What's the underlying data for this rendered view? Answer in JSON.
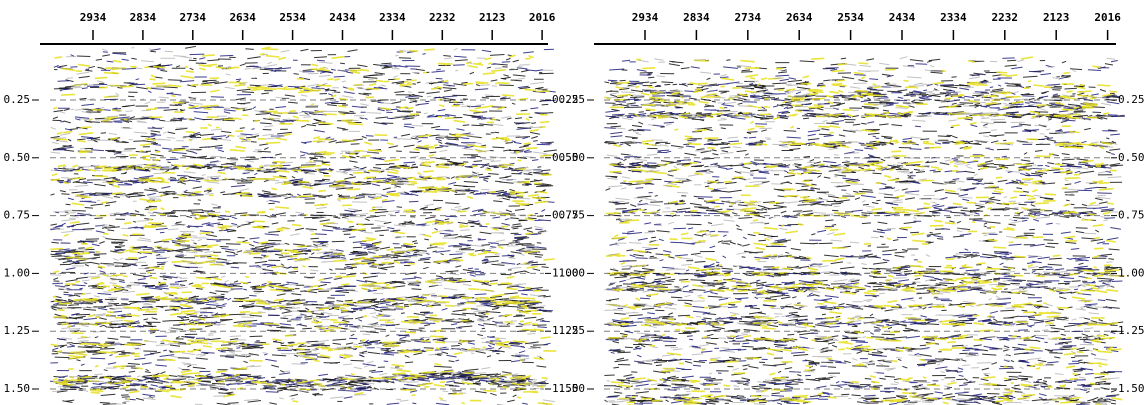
{
  "panels": [
    {
      "trace_labels": [
        "2934",
        "2834",
        "2734",
        "2634",
        "2534",
        "2434",
        "2334",
        "2232",
        "2123",
        "2016"
      ],
      "time_labels": [
        "0.25",
        "0.50",
        "0.75",
        "1.00",
        "1.25",
        "1.50"
      ]
    },
    {
      "trace_labels": [
        "2934",
        "2834",
        "2734",
        "2634",
        "2534",
        "2434",
        "2334",
        "2232",
        "2123",
        "2016"
      ],
      "time_labels": [
        "0.25",
        "0.50",
        "0.75",
        "1.00",
        "1.25",
        "1.50"
      ]
    }
  ]
}
